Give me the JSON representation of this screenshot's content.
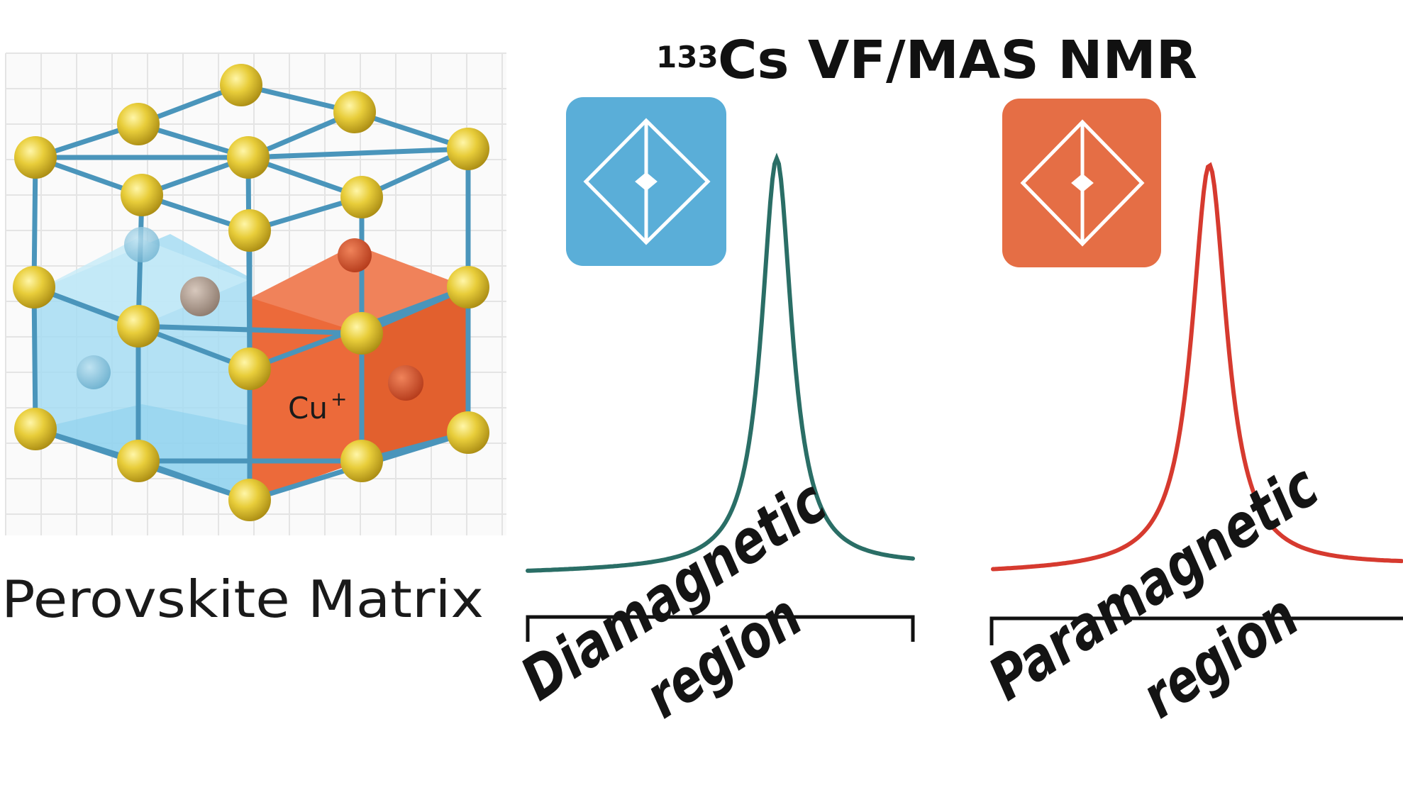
{
  "title": {
    "isotope_mass": "133",
    "main": "Cs VF/MAS NMR"
  },
  "structure": {
    "caption": "Perovskite Matrix",
    "dopant_label": "Cu",
    "dopant_charge": "+"
  },
  "panels": [
    {
      "region_line1": "Diamagnetic",
      "region_line2": "region",
      "icon": "diamond-probe-icon",
      "tile_color": "#5aaed8",
      "curve_color": "#2a6e66"
    },
    {
      "region_line1": "Paramagnetic",
      "region_line2": "region",
      "icon": "diamond-probe-icon",
      "tile_color": "#e56e45",
      "curve_color": "#d63a2f"
    }
  ],
  "colors": {
    "lattice_rod": "#4a95bb",
    "lattice_node": "#e3c93a",
    "host_cell": "#9fd8ef",
    "dopant_cell": "#ea6a3a",
    "grid_line": "#e4e4e4"
  }
}
